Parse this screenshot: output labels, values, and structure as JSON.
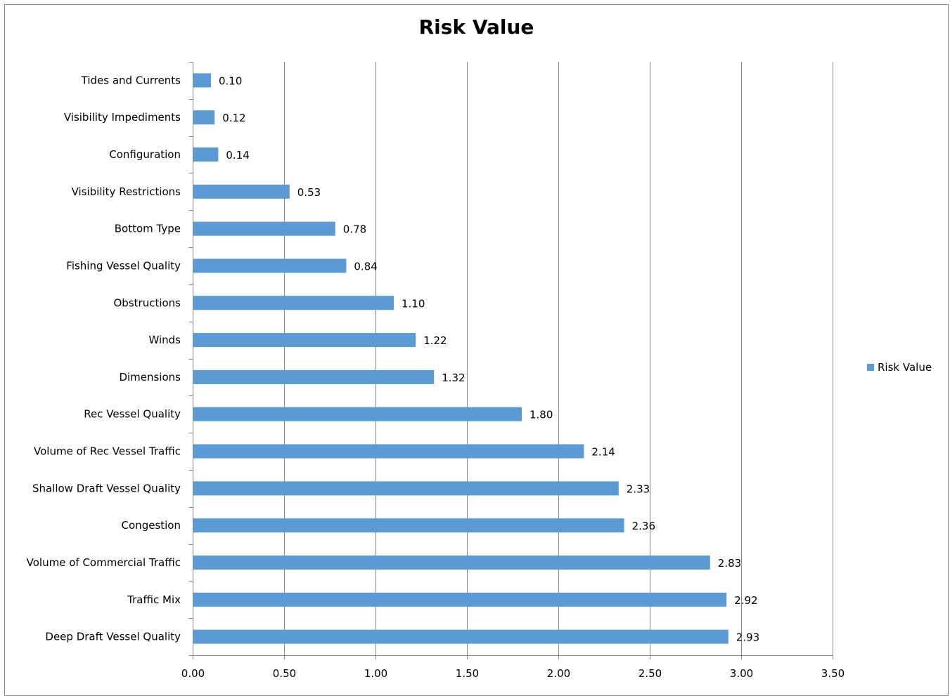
{
  "chart_data": {
    "type": "bar",
    "orientation": "horizontal",
    "title": "Risk Value",
    "xlabel": "",
    "ylabel": "",
    "xlim": [
      0,
      3.5
    ],
    "x_ticks": [
      "0.00",
      "0.50",
      "1.00",
      "1.50",
      "2.00",
      "2.50",
      "3.00",
      "3.50"
    ],
    "grid": true,
    "legend_position": "right",
    "bar_color": "#5b9bd5",
    "categories": [
      "Tides and Currents",
      "Visibility Impediments",
      "Configuration",
      "Visibility Restrictions",
      "Bottom Type",
      "Fishing Vessel Quality",
      "Obstructions",
      "Winds",
      "Dimensions",
      "Rec Vessel Quality",
      "Volume of Rec Vessel Traffic",
      "Shallow Draft Vessel Quality",
      "Congestion",
      "Volume of Commercial Traffic",
      "Traffic Mix",
      "Deep Draft Vessel Quality"
    ],
    "series": [
      {
        "name": "Risk Value",
        "values": [
          0.1,
          0.12,
          0.14,
          0.53,
          0.78,
          0.84,
          1.1,
          1.22,
          1.32,
          1.8,
          2.14,
          2.33,
          2.36,
          2.83,
          2.92,
          2.93
        ],
        "labels": [
          "0.10",
          "0.12",
          "0.14",
          "0.53",
          "0.78",
          "0.84",
          "1.10",
          "1.22",
          "1.32",
          "1.80",
          "2.14",
          "2.33",
          "2.36",
          "2.83",
          "2.92",
          "2.93"
        ]
      }
    ]
  }
}
